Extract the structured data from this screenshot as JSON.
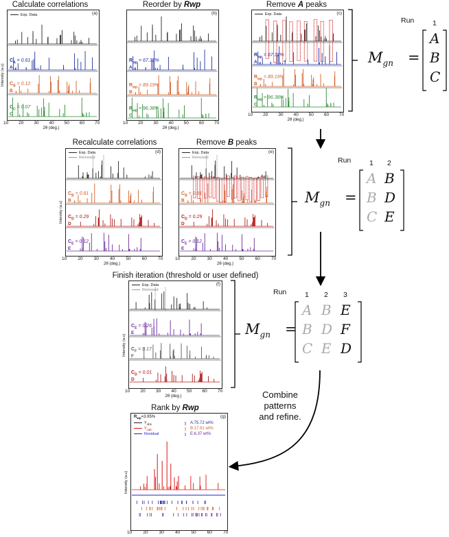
{
  "steps": {
    "a": {
      "title": "Calculate correlations",
      "tag": "(a)",
      "legend": [
        "Exp. Data"
      ],
      "series": [
        {
          "letter": "A",
          "label_pre": "C",
          "label_sub": "A",
          "label_val": " = 0.61",
          "color": "#1f2fa0"
        },
        {
          "letter": "B",
          "label_pre": "C",
          "label_sub": "B",
          "label_val": " = 0.12",
          "color": "#d2602a"
        },
        {
          "letter": "C",
          "label_pre": "C",
          "label_sub": "C",
          "label_val": " = 0.07",
          "color": "#2e8a36"
        }
      ]
    },
    "b": {
      "title_pre": "Reorder by ",
      "title_em": "Rwp",
      "tag": "(b)",
      "series": [
        {
          "letter": "A",
          "label_pre": "R",
          "label_sub": "wp",
          "label_val": " = 67.32%",
          "color": "#1f2fa0"
        },
        {
          "letter": "B",
          "label_pre": "R",
          "label_sub": "wp",
          "label_val": " = 89.19%",
          "color": "#d2602a"
        },
        {
          "letter": "C",
          "label_pre": "R",
          "label_sub": "wp",
          "label_val": " = 96.38%",
          "color": "#2e8a36"
        }
      ]
    },
    "c": {
      "title_pre": "Remove ",
      "title_em": "A",
      "title_post": " peaks",
      "tag": "(c)",
      "legend": [
        "Exp. Data"
      ],
      "series": [
        {
          "letter": "A",
          "label_pre": "R",
          "label_sub": "wp",
          "label_val": " = 67.32%",
          "color": "#1f2fa0"
        },
        {
          "letter": "B",
          "label_pre": "R",
          "label_sub": "wp",
          "label_val": " = 89.19%",
          "color": "#d2602a"
        },
        {
          "letter": "C",
          "label_pre": "R",
          "label_sub": "wp",
          "label_val": " = 96.38%",
          "color": "#2e8a36"
        }
      ]
    },
    "d": {
      "title": "Recalculate correlations",
      "tag": "(d)",
      "legend": [
        "Exp. Data",
        "Removed"
      ],
      "series": [
        {
          "letter": "B",
          "label_pre": "C",
          "label_sub": "B",
          "label_val": " = 0.81",
          "color": "#d2602a"
        },
        {
          "letter": "D",
          "label_pre": "C",
          "label_sub": "D",
          "label_val": " = 0.29",
          "color": "#b01818"
        },
        {
          "letter": "E",
          "label_pre": "C",
          "label_sub": "E",
          "label_val": " = 0.12",
          "color": "#6a2a9a"
        }
      ]
    },
    "e": {
      "title_pre": "Remove ",
      "title_em": "B",
      "title_post": " peaks",
      "tag": "(e)",
      "legend": [
        "Exp. Data",
        "Removed"
      ],
      "series": [
        {
          "letter": "B",
          "label_pre": "C",
          "label_sub": "B",
          "label_val": " = 0.81",
          "color": "#d2602a"
        },
        {
          "letter": "D",
          "label_pre": "C",
          "label_sub": "D",
          "label_val": " = 0.29",
          "color": "#b01818"
        },
        {
          "letter": "E",
          "label_pre": "C",
          "label_sub": "E",
          "label_val": " = 0.12",
          "color": "#6a2a9a"
        }
      ]
    },
    "f": {
      "title": "Finish iteration (threshold or user defined)",
      "tag": "(f)",
      "legend": [
        "Exp. Data",
        "Removed"
      ],
      "series": [
        {
          "letter": "E",
          "label_pre": "C",
          "label_sub": "E",
          "label_val": " = 0.26",
          "color": "#6a2a9a"
        },
        {
          "letter": "F",
          "label_pre": "C",
          "label_sub": "F",
          "label_val": " = 0.17",
          "color": "#555555"
        },
        {
          "letter": "D",
          "label_pre": "C",
          "label_sub": "D",
          "label_val": " = 0.01",
          "color": "#b01818"
        }
      ]
    },
    "g": {
      "title_pre": "Rank by ",
      "title_em": "Rwp",
      "tag": "(g)",
      "rwp_pre": "R",
      "rwp_sub": "wp",
      "rwp_val": "=3.95%",
      "legend": [
        {
          "label_pre": "Y",
          "label_sub": "obs",
          "color": "#222222"
        },
        {
          "label_pre": "Y",
          "label_sub": "calc",
          "color": "#e01010"
        },
        {
          "label_pre": "Residual",
          "label_sub": "",
          "color": "#2020d0"
        }
      ],
      "phases": [
        {
          "text": "A:75.72 wt%",
          "color": "#1f2fa0"
        },
        {
          "text": "B:17.91 wt%",
          "color": "#d2602a"
        },
        {
          "text": "E:6.37 wt%",
          "color": "#6a2a9a"
        }
      ]
    }
  },
  "axes": {
    "xticks": [
      "10",
      "20",
      "30",
      "40",
      "50",
      "60",
      "70"
    ],
    "xlabel": "2θ (deg.)",
    "ylabel": "Intensity (a.u)"
  },
  "matrix": {
    "symbol_pre": "M",
    "symbol_sub": "gn",
    "run_label": "Run",
    "m1": {
      "cols": [
        "1"
      ],
      "rows": [
        [
          "A"
        ],
        [
          "B"
        ],
        [
          "C"
        ]
      ]
    },
    "m2": {
      "cols": [
        "1",
        "2"
      ],
      "rows": [
        [
          "A",
          "B"
        ],
        [
          "B",
          "D"
        ],
        [
          "C",
          "E"
        ]
      ]
    },
    "m3": {
      "cols": [
        "1",
        "2",
        "3"
      ],
      "rows": [
        [
          "A",
          "B",
          "E"
        ],
        [
          "B",
          "D",
          "F"
        ],
        [
          "C",
          "E",
          "D"
        ]
      ]
    }
  },
  "combine_text": [
    "Combine",
    "patterns",
    "and refine."
  ],
  "colors": {
    "exp": "#222222",
    "removed": "#999999",
    "red_box": "#d01818",
    "arrow": "#000000"
  }
}
